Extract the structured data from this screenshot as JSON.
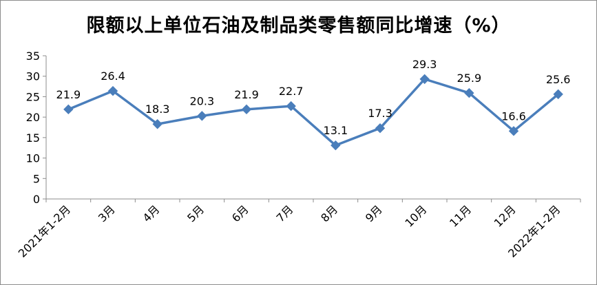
{
  "chart_data": {
    "type": "line",
    "title": "限额以上单位石油及制品类零售额同比增速（%）",
    "categories": [
      "2021年1-2月",
      "3月",
      "4月",
      "5月",
      "6月",
      "7月",
      "8月",
      "9月",
      "10月",
      "11月",
      "12月",
      "2022年1-2月"
    ],
    "series": [
      {
        "values": [
          21.9,
          26.4,
          18.3,
          20.3,
          21.9,
          22.7,
          13.1,
          17.3,
          29.3,
          25.9,
          16.6,
          25.6
        ]
      }
    ],
    "data_labels": [
      "21.9",
      "26.4",
      "18.3",
      "20.3",
      "21.9",
      "22.7",
      "13.1",
      "17.3",
      "29.3",
      "25.9",
      "16.6",
      "25.6"
    ],
    "y_ticks": [
      "0",
      "5",
      "10",
      "15",
      "20",
      "25",
      "30",
      "35"
    ],
    "ylim": [
      0,
      35
    ],
    "xlabel": "",
    "ylabel": "",
    "grid": false,
    "legend": "none",
    "colors": {
      "line": "#4a7ebb",
      "marker": "#4a7ebb",
      "axis": "#8c8c8c"
    }
  }
}
